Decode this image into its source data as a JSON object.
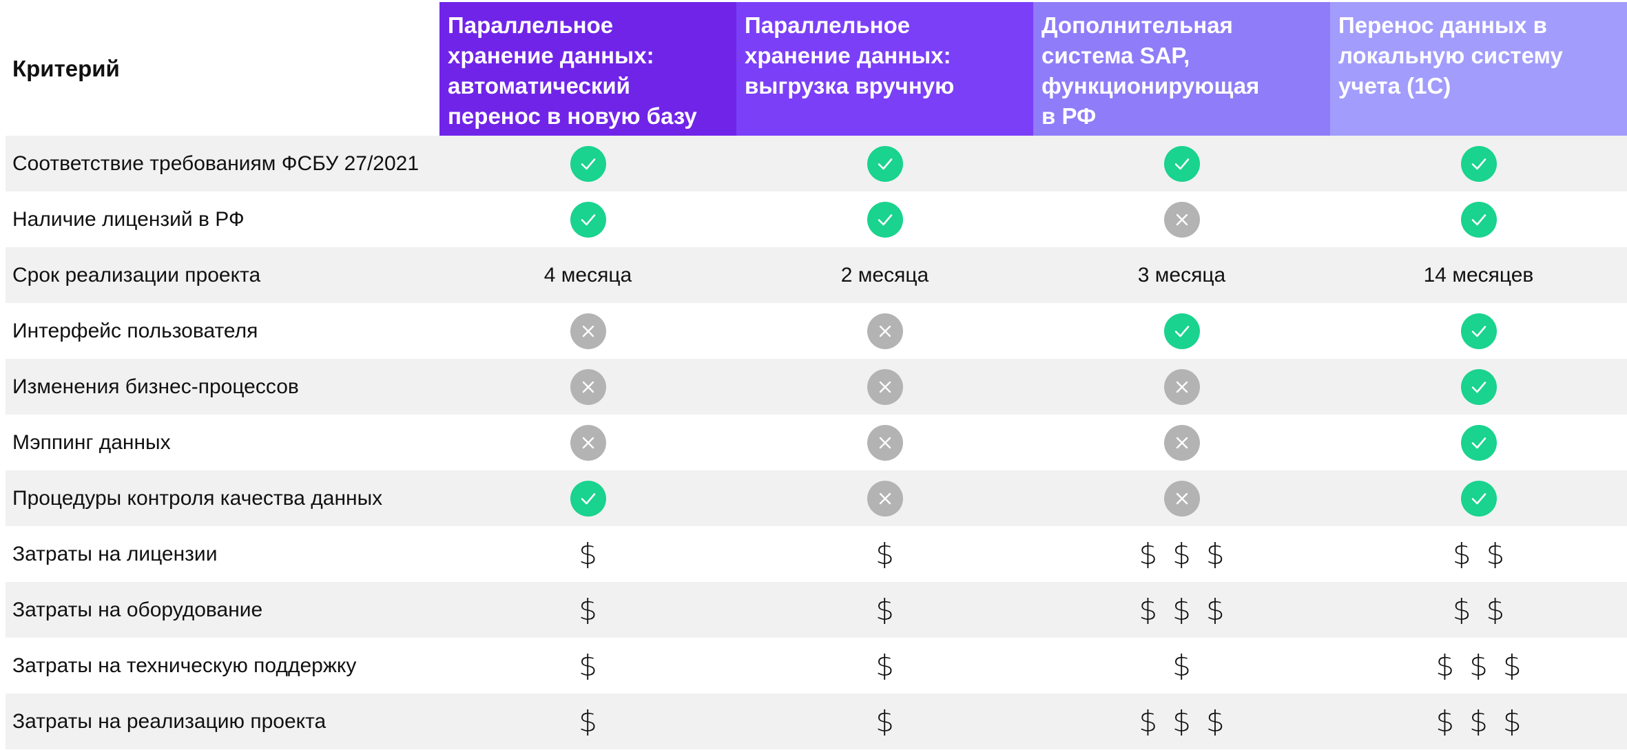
{
  "header": {
    "criterion_label": "Критерий",
    "columns": [
      {
        "title": "Параллельное\nхранение данных:\nавтоматический\nперенос в новую базу",
        "color": "#7024E8"
      },
      {
        "title": "Параллельное\nхранение данных:\nвыгрузка вручную",
        "color": "#7B3FF7"
      },
      {
        "title": "Дополнительная\nсистема SAP,\nфункционирующая\nв  РФ",
        "color": "#8F7CF8"
      },
      {
        "title": "Перенос данных в\nлокальную систему\nучета (1С)",
        "color": "#A29CFC"
      }
    ]
  },
  "legend": {
    "check_color": "#19D38E",
    "cross_color": "#B3B3B3",
    "check_icon": "check-circle-icon",
    "cross_icon": "x-circle-icon"
  },
  "rows": [
    {
      "criterion": "Соответствие требованиям ФСБУ 27/2021",
      "values": [
        "yes",
        "yes",
        "yes",
        "yes"
      ]
    },
    {
      "criterion": "Наличие лицензий в РФ",
      "values": [
        "yes",
        "yes",
        "no",
        "yes"
      ]
    },
    {
      "criterion": "Срок реализации проекта",
      "values": [
        "4 месяца",
        "2 месяца",
        "3 месяца",
        "14 месяцев"
      ]
    },
    {
      "criterion": "Интерфейс пользователя",
      "values": [
        "no",
        "no",
        "yes",
        "yes"
      ]
    },
    {
      "criterion": "Изменения бизнес-процессов",
      "values": [
        "no",
        "no",
        "no",
        "yes"
      ]
    },
    {
      "criterion": "Мэппинг данных",
      "values": [
        "no",
        "no",
        "no",
        "yes"
      ]
    },
    {
      "criterion": "Процедуры контроля качества данных",
      "values": [
        "yes",
        "no",
        "no",
        "yes"
      ]
    },
    {
      "criterion": "Затраты на лицензии",
      "values": [
        "$",
        "$",
        "$$$",
        "$$"
      ]
    },
    {
      "criterion": "Затраты на оборудование",
      "values": [
        "$",
        "$",
        "$$$",
        "$$"
      ]
    },
    {
      "criterion": "Затраты на техническую поддержку",
      "values": [
        "$",
        "$",
        "$",
        "$$$"
      ]
    },
    {
      "criterion": "Затраты на реализацию проекта",
      "values": [
        "$",
        "$",
        "$$$",
        "$$$"
      ]
    }
  ]
}
